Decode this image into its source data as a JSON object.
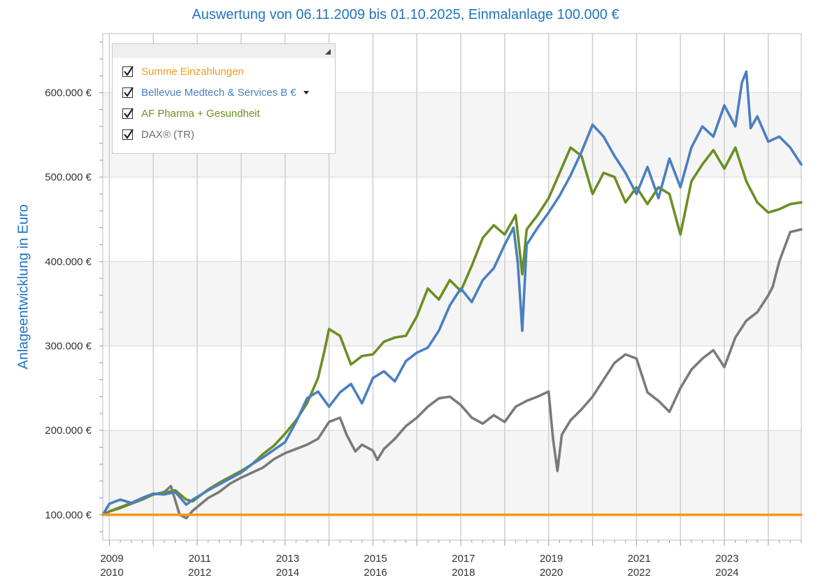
{
  "title": "Auswertung von 06.11.2009 bis 01.10.2025, Einmalanlage 100.000 €",
  "y_axis_label": "Anlageentwicklung  in Euro",
  "legend": [
    {
      "label": "Summe Einzahlungen",
      "color": "#f39a1e",
      "checked": true
    },
    {
      "label": "Bellevue Medtech & Services B €",
      "color": "#4a7fc1",
      "checked": true,
      "dropdown": true
    },
    {
      "label": "AF Pharma + Gesundheit",
      "color": "#6b8e23",
      "checked": true
    },
    {
      "label": "DAX® (TR)",
      "color": "#6e6e6e",
      "checked": true
    }
  ],
  "chart_data": {
    "type": "line",
    "title": "Auswertung von 06.11.2009 bis 01.10.2025, Einmalanlage 100.000 €",
    "xlabel": "",
    "ylabel": "Anlageentwicklung  in Euro",
    "xlim": [
      2009.85,
      2025.75
    ],
    "ylim": [
      70000,
      670000
    ],
    "yticks": [
      100000,
      200000,
      300000,
      400000,
      500000,
      600000
    ],
    "ytick_labels": [
      "100.000 €",
      "200.000 €",
      "300.000 €",
      "400.000 €",
      "500.000 €",
      "600.000 €"
    ],
    "xtick_labels_odd": [
      "2009",
      "2011",
      "2013",
      "2015",
      "2017",
      "2019",
      "2021",
      "2023"
    ],
    "xtick_labels_even": [
      "2010",
      "2012",
      "2014",
      "2016",
      "2018",
      "2020",
      "2022",
      "2024"
    ],
    "band_ranges": [
      [
        100000,
        200000
      ],
      [
        300000,
        400000
      ],
      [
        500000,
        600000
      ]
    ],
    "series": [
      {
        "name": "Summe Einzahlungen",
        "color": "#f39a1e",
        "x": [
          2009.85,
          2025.75
        ],
        "values": [
          100000,
          100000
        ]
      },
      {
        "name": "DAX® (TR)",
        "color": "#7a7a7a",
        "x": [
          2009.85,
          2010.0,
          2010.25,
          2010.5,
          2010.75,
          2011.0,
          2011.25,
          2011.4,
          2011.6,
          2011.75,
          2011.9,
          2012.25,
          2012.5,
          2012.75,
          2013.0,
          2013.25,
          2013.5,
          2013.75,
          2014.0,
          2014.25,
          2014.5,
          2014.75,
          2015.0,
          2015.25,
          2015.4,
          2015.6,
          2015.75,
          2016.0,
          2016.1,
          2016.25,
          2016.5,
          2016.75,
          2017.0,
          2017.25,
          2017.5,
          2017.75,
          2018.0,
          2018.25,
          2018.5,
          2018.75,
          2019.0,
          2019.25,
          2019.5,
          2019.75,
          2020.0,
          2020.1,
          2020.2,
          2020.3,
          2020.5,
          2020.75,
          2021.0,
          2021.25,
          2021.5,
          2021.75,
          2022.0,
          2022.25,
          2022.5,
          2022.75,
          2023.0,
          2023.25,
          2023.5,
          2023.75,
          2024.0,
          2024.25,
          2024.5,
          2024.75,
          2025.0,
          2025.1,
          2025.25,
          2025.5,
          2025.75
        ],
        "values": [
          100000,
          104000,
          108000,
          113000,
          118000,
          124000,
          127000,
          134000,
          100000,
          96000,
          105000,
          120000,
          127000,
          137000,
          144000,
          150000,
          156000,
          166000,
          173000,
          178000,
          183000,
          190000,
          210000,
          215000,
          195000,
          175000,
          183000,
          176000,
          165000,
          178000,
          190000,
          205000,
          215000,
          228000,
          238000,
          240000,
          230000,
          215000,
          208000,
          218000,
          210000,
          228000,
          235000,
          240000,
          246000,
          190000,
          152000,
          195000,
          212000,
          225000,
          240000,
          260000,
          280000,
          290000,
          285000,
          245000,
          235000,
          222000,
          250000,
          272000,
          285000,
          295000,
          275000,
          310000,
          330000,
          340000,
          360000,
          370000,
          400000,
          435000,
          438000
        ]
      },
      {
        "name": "AF Pharma + Gesundheit",
        "color": "#6b8e23",
        "x": [
          2009.85,
          2010.0,
          2010.25,
          2010.5,
          2010.75,
          2011.0,
          2011.25,
          2011.5,
          2011.75,
          2011.9,
          2012.25,
          2012.5,
          2012.75,
          2013.0,
          2013.25,
          2013.5,
          2013.75,
          2014.0,
          2014.25,
          2014.5,
          2014.75,
          2014.9,
          2015.0,
          2015.25,
          2015.5,
          2015.75,
          2016.0,
          2016.25,
          2016.5,
          2016.75,
          2017.0,
          2017.25,
          2017.5,
          2017.75,
          2018.0,
          2018.25,
          2018.5,
          2018.75,
          2019.0,
          2019.25,
          2019.4,
          2019.5,
          2019.75,
          2020.0,
          2020.25,
          2020.5,
          2020.75,
          2021.0,
          2021.25,
          2021.5,
          2021.75,
          2022.0,
          2022.25,
          2022.5,
          2022.75,
          2023.0,
          2023.25,
          2023.5,
          2023.75,
          2024.0,
          2024.25,
          2024.5,
          2024.75,
          2025.0,
          2025.25,
          2025.5,
          2025.75
        ],
        "values": [
          100000,
          104000,
          109000,
          114000,
          119000,
          124000,
          126000,
          129000,
          118000,
          116000,
          130000,
          138000,
          145000,
          152000,
          160000,
          172000,
          182000,
          196000,
          212000,
          232000,
          262000,
          295000,
          320000,
          312000,
          278000,
          288000,
          290000,
          305000,
          310000,
          312000,
          335000,
          368000,
          355000,
          378000,
          365000,
          395000,
          428000,
          443000,
          432000,
          455000,
          385000,
          438000,
          455000,
          475000,
          505000,
          535000,
          525000,
          480000,
          505000,
          500000,
          470000,
          488000,
          468000,
          488000,
          480000,
          432000,
          495000,
          515000,
          532000,
          510000,
          535000,
          495000,
          470000,
          458000,
          462000,
          468000,
          470000
        ]
      },
      {
        "name": "Bellevue Medtech & Services B €",
        "color": "#4a7fc1",
        "x": [
          2009.85,
          2010.0,
          2010.25,
          2010.5,
          2010.75,
          2011.0,
          2011.25,
          2011.5,
          2011.75,
          2011.9,
          2012.25,
          2012.5,
          2012.75,
          2013.0,
          2013.25,
          2013.5,
          2013.75,
          2014.0,
          2014.25,
          2014.5,
          2014.75,
          2015.0,
          2015.25,
          2015.5,
          2015.75,
          2016.0,
          2016.25,
          2016.5,
          2016.75,
          2017.0,
          2017.25,
          2017.5,
          2017.75,
          2018.0,
          2018.25,
          2018.5,
          2018.75,
          2019.0,
          2019.2,
          2019.3,
          2019.4,
          2019.5,
          2019.75,
          2020.0,
          2020.25,
          2020.5,
          2020.75,
          2021.0,
          2021.25,
          2021.5,
          2021.75,
          2022.0,
          2022.25,
          2022.5,
          2022.75,
          2023.0,
          2023.25,
          2023.5,
          2023.75,
          2024.0,
          2024.25,
          2024.4,
          2024.5,
          2024.6,
          2024.75,
          2025.0,
          2025.25,
          2025.5,
          2025.75
        ],
        "values": [
          100000,
          113000,
          118000,
          114000,
          120000,
          125000,
          124000,
          127000,
          112000,
          118000,
          129000,
          136000,
          143000,
          150000,
          160000,
          168000,
          177000,
          186000,
          210000,
          238000,
          246000,
          228000,
          245000,
          255000,
          232000,
          262000,
          270000,
          258000,
          282000,
          292000,
          298000,
          318000,
          348000,
          368000,
          352000,
          378000,
          392000,
          420000,
          440000,
          398000,
          318000,
          420000,
          440000,
          458000,
          478000,
          502000,
          530000,
          562000,
          548000,
          525000,
          505000,
          480000,
          512000,
          475000,
          522000,
          488000,
          535000,
          560000,
          548000,
          585000,
          560000,
          612000,
          625000,
          558000,
          572000,
          542000,
          548000,
          535000,
          515000
        ]
      }
    ]
  }
}
